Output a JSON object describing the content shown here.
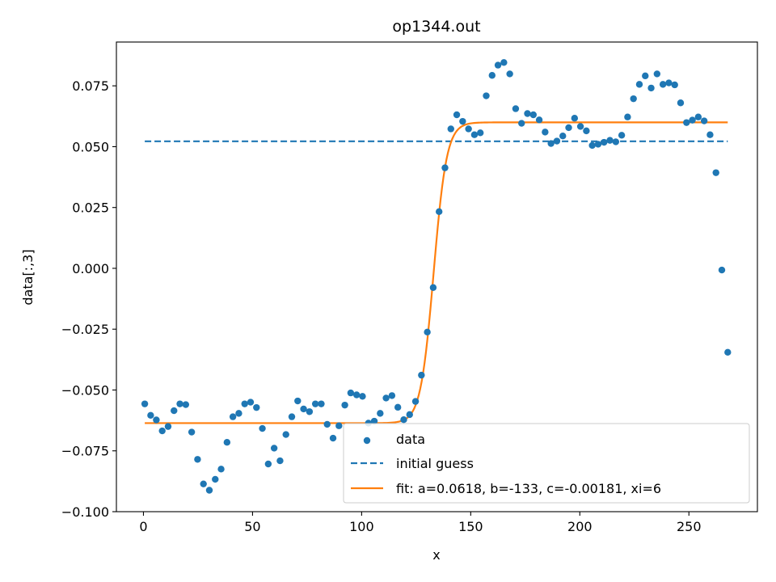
{
  "chart_data": {
    "type": "scatter",
    "title": "op1344.out",
    "xlabel": "x",
    "ylabel": "data[:,3]",
    "xlim": [
      -12.4,
      281.4
    ],
    "ylim": [
      -0.1,
      0.093
    ],
    "xticks": [
      0,
      50,
      100,
      150,
      200,
      250
    ],
    "xtick_labels": [
      "0",
      "50",
      "100",
      "150",
      "200",
      "250"
    ],
    "yticks": [
      -0.1,
      -0.075,
      -0.05,
      -0.025,
      0.0,
      0.025,
      0.05,
      0.075
    ],
    "ytick_labels": [
      "−0.100",
      "−0.075",
      "−0.050",
      "−0.025",
      "0.000",
      "0.025",
      "0.050",
      "0.075"
    ],
    "grid": false,
    "legend_position": "lower-right",
    "colors": {
      "data": "#1f77b4",
      "guess": "#1f77b4",
      "fit": "#ff7f0e"
    },
    "series": [
      {
        "name": "data",
        "kind": "scatter",
        "points": [
          [
            0.6,
            -0.0557
          ],
          [
            3.3,
            -0.0604
          ],
          [
            5.9,
            -0.0623
          ],
          [
            8.6,
            -0.0668
          ],
          [
            11.3,
            -0.065
          ],
          [
            14.0,
            -0.0585
          ],
          [
            16.7,
            -0.0557
          ],
          [
            19.4,
            -0.056
          ],
          [
            22.1,
            -0.0673
          ],
          [
            24.8,
            -0.0785
          ],
          [
            27.5,
            -0.0886
          ],
          [
            30.2,
            -0.0912
          ],
          [
            32.9,
            -0.0867
          ],
          [
            35.6,
            -0.0825
          ],
          [
            38.3,
            -0.0715
          ],
          [
            41.0,
            -0.061
          ],
          [
            43.7,
            -0.0596
          ],
          [
            46.4,
            -0.0557
          ],
          [
            49.1,
            -0.055
          ],
          [
            51.8,
            -0.0572
          ],
          [
            54.5,
            -0.0658
          ],
          [
            57.2,
            -0.0804
          ],
          [
            59.9,
            -0.0739
          ],
          [
            62.6,
            -0.0791
          ],
          [
            65.3,
            -0.0683
          ],
          [
            68.0,
            -0.061
          ],
          [
            70.7,
            -0.0545
          ],
          [
            73.4,
            -0.0578
          ],
          [
            76.1,
            -0.0589
          ],
          [
            78.8,
            -0.0557
          ],
          [
            81.5,
            -0.0557
          ],
          [
            84.2,
            -0.0641
          ],
          [
            86.9,
            -0.0698
          ],
          [
            89.6,
            -0.0647
          ],
          [
            92.3,
            -0.0562
          ],
          [
            95.0,
            -0.0512
          ],
          [
            97.7,
            -0.052
          ],
          [
            100.4,
            -0.0526
          ],
          [
            103.1,
            -0.0636
          ],
          [
            105.8,
            -0.0628
          ],
          [
            108.5,
            -0.0596
          ],
          [
            111.2,
            -0.0533
          ],
          [
            113.9,
            -0.0523
          ],
          [
            116.6,
            -0.0571
          ],
          [
            119.3,
            -0.0622
          ],
          [
            122.0,
            -0.0601
          ],
          [
            124.7,
            -0.0547
          ],
          [
            127.4,
            -0.0439
          ],
          [
            130.1,
            -0.0262
          ],
          [
            132.8,
            -0.0079
          ],
          [
            135.5,
            0.0233
          ],
          [
            138.2,
            0.0413
          ],
          [
            140.9,
            0.0573
          ],
          [
            143.6,
            0.0631
          ],
          [
            146.3,
            0.0604
          ],
          [
            149.0,
            0.0573
          ],
          [
            151.7,
            0.0549
          ],
          [
            154.4,
            0.0557
          ],
          [
            157.1,
            0.0709
          ],
          [
            159.8,
            0.0793
          ],
          [
            162.5,
            0.0835
          ],
          [
            165.2,
            0.0846
          ],
          [
            167.9,
            0.0799
          ],
          [
            170.6,
            0.0656
          ],
          [
            173.3,
            0.0596
          ],
          [
            176.0,
            0.0636
          ],
          [
            178.7,
            0.0631
          ],
          [
            181.4,
            0.061
          ],
          [
            184.1,
            0.056
          ],
          [
            186.8,
            0.0513
          ],
          [
            189.5,
            0.0523
          ],
          [
            192.2,
            0.0544
          ],
          [
            194.9,
            0.0578
          ],
          [
            197.6,
            0.0617
          ],
          [
            200.3,
            0.0583
          ],
          [
            203.0,
            0.0565
          ],
          [
            205.7,
            0.0505
          ],
          [
            208.4,
            0.051
          ],
          [
            211.1,
            0.0518
          ],
          [
            213.8,
            0.0526
          ],
          [
            216.5,
            0.052
          ],
          [
            219.2,
            0.0547
          ],
          [
            221.9,
            0.0622
          ],
          [
            224.6,
            0.0697
          ],
          [
            227.3,
            0.0756
          ],
          [
            230.0,
            0.0791
          ],
          [
            232.7,
            0.0741
          ],
          [
            235.4,
            0.0799
          ],
          [
            238.1,
            0.0756
          ],
          [
            240.8,
            0.0762
          ],
          [
            243.5,
            0.0754
          ],
          [
            246.2,
            0.068
          ],
          [
            248.9,
            0.0599
          ],
          [
            251.6,
            0.0609
          ],
          [
            254.3,
            0.0622
          ],
          [
            257.0,
            0.0606
          ],
          [
            259.7,
            0.0549
          ],
          [
            262.4,
            0.0393
          ],
          [
            265.1,
            -0.0007
          ],
          [
            267.8,
            -0.0345
          ]
        ]
      },
      {
        "name": "initial guess",
        "kind": "hline",
        "y": 0.0522,
        "x_range": [
          0.6,
          267.8
        ]
      },
      {
        "name": "fit: a=0.0618, b=-133, c=-0.00181, xi=6",
        "kind": "tanh",
        "a": 0.0618,
        "b": -133,
        "c": -0.00181,
        "xi": 6,
        "x_range": [
          0.6,
          267.8
        ]
      }
    ]
  }
}
